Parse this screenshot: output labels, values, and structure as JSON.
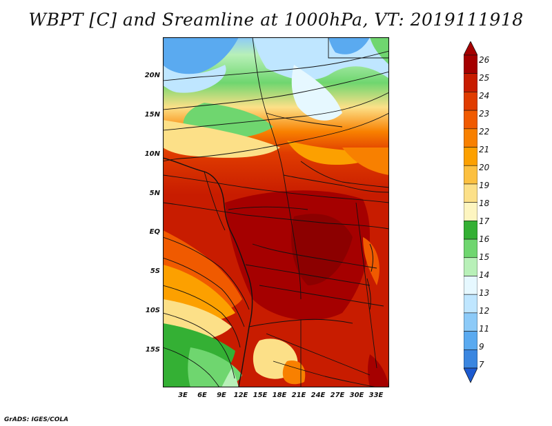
{
  "title": "WBPT [C] and Sreamline at 1000hPa, VT: 2019111918",
  "credit": "GrADS: IGES/COLA",
  "map": {
    "lat_labels": [
      "20N",
      "15N",
      "10N",
      "5N",
      "EQ",
      "5S",
      "10S",
      "15S"
    ],
    "lon_labels": [
      "3E",
      "6E",
      "9E",
      "12E",
      "15E",
      "18E",
      "21E",
      "24E",
      "27E",
      "30E",
      "33E"
    ]
  },
  "colorbar": {
    "labels": [
      "26",
      "25",
      "24",
      "23",
      "22",
      "21",
      "20",
      "19",
      "18",
      "17",
      "16",
      "15",
      "14",
      "13",
      "12",
      "11",
      "9",
      "7"
    ],
    "colors": [
      "#a50000",
      "#c81c00",
      "#e03c00",
      "#f05a00",
      "#f88000",
      "#fca000",
      "#fcc040",
      "#fce088",
      "#fdf5c0",
      "#34b034",
      "#6fd66f",
      "#b8f0b8",
      "#e6f8ff",
      "#bfe6ff",
      "#8ccaf8",
      "#5aaaf0",
      "#3a86e0",
      "#1c5ad0"
    ]
  }
}
